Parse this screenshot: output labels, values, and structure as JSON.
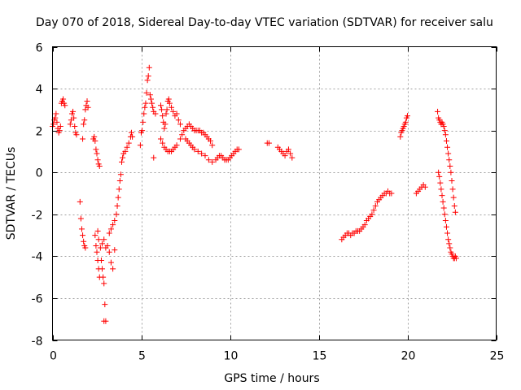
{
  "chart_data": {
    "type": "scatter",
    "title": "Day 070 of 2018, Sidereal Day-to-day VTEC variation (SDTVAR) for receiver salu",
    "xlabel": "GPS time / hours",
    "ylabel": "SDTVAR / TECUs",
    "xlim": [
      0,
      25
    ],
    "ylim": [
      -8,
      6
    ],
    "xticks": [
      0,
      5,
      10,
      15,
      20,
      25
    ],
    "yticks": [
      -8,
      -6,
      -4,
      -2,
      0,
      2,
      4,
      6
    ],
    "grid": true,
    "marker": "+",
    "marker_color": "#ff0000",
    "series": [
      {
        "name": "SDTVAR",
        "points": [
          [
            0.0,
            2.2
          ],
          [
            0.05,
            2.3
          ],
          [
            0.1,
            2.5
          ],
          [
            0.15,
            2.6
          ],
          [
            0.2,
            2.8
          ],
          [
            0.25,
            2.4
          ],
          [
            0.3,
            2.1
          ],
          [
            0.35,
            1.9
          ],
          [
            0.4,
            2.0
          ],
          [
            0.45,
            2.2
          ],
          [
            0.5,
            3.3
          ],
          [
            0.55,
            3.4
          ],
          [
            0.6,
            3.5
          ],
          [
            0.65,
            3.3
          ],
          [
            0.7,
            3.2
          ],
          [
            1.0,
            2.3
          ],
          [
            1.05,
            2.5
          ],
          [
            1.1,
            2.8
          ],
          [
            1.15,
            2.9
          ],
          [
            1.2,
            2.6
          ],
          [
            1.25,
            2.2
          ],
          [
            1.3,
            1.9
          ],
          [
            1.35,
            1.8
          ],
          [
            1.7,
            1.6
          ],
          [
            1.75,
            2.3
          ],
          [
            1.8,
            2.5
          ],
          [
            1.85,
            3.0
          ],
          [
            1.9,
            3.2
          ],
          [
            1.95,
            3.4
          ],
          [
            2.0,
            3.1
          ],
          [
            1.55,
            -1.4
          ],
          [
            1.6,
            -2.2
          ],
          [
            1.65,
            -2.7
          ],
          [
            1.7,
            -3.0
          ],
          [
            1.75,
            -3.3
          ],
          [
            1.8,
            -3.5
          ],
          [
            1.85,
            -3.6
          ],
          [
            2.3,
            1.6
          ],
          [
            2.35,
            1.7
          ],
          [
            2.4,
            1.5
          ],
          [
            2.45,
            1.1
          ],
          [
            2.5,
            0.9
          ],
          [
            2.55,
            0.6
          ],
          [
            2.6,
            0.4
          ],
          [
            2.65,
            0.3
          ],
          [
            2.45,
            -3.5
          ],
          [
            2.5,
            -3.8
          ],
          [
            2.55,
            -4.2
          ],
          [
            2.6,
            -4.6
          ],
          [
            2.65,
            -5.0
          ],
          [
            2.4,
            -3.0
          ],
          [
            2.55,
            -2.8
          ],
          [
            2.6,
            -3.2
          ],
          [
            2.7,
            -3.6
          ],
          [
            2.75,
            -4.2
          ],
          [
            2.8,
            -4.6
          ],
          [
            2.85,
            -5.0
          ],
          [
            2.9,
            -5.3
          ],
          [
            2.95,
            -6.3
          ],
          [
            2.9,
            -7.1
          ],
          [
            3.0,
            -7.1
          ],
          [
            2.8,
            -3.4
          ],
          [
            2.9,
            -3.2
          ],
          [
            3.0,
            -3.6
          ],
          [
            3.1,
            -3.5
          ],
          [
            3.2,
            -3.8
          ],
          [
            3.3,
            -4.3
          ],
          [
            3.4,
            -4.6
          ],
          [
            3.5,
            -3.7
          ],
          [
            3.2,
            -2.9
          ],
          [
            3.3,
            -2.7
          ],
          [
            3.4,
            -2.5
          ],
          [
            3.5,
            -2.3
          ],
          [
            3.6,
            -2.0
          ],
          [
            3.65,
            -1.6
          ],
          [
            3.7,
            -1.2
          ],
          [
            3.75,
            -0.8
          ],
          [
            3.8,
            -0.4
          ],
          [
            3.85,
            -0.1
          ],
          [
            3.9,
            0.5
          ],
          [
            3.95,
            0.7
          ],
          [
            4.0,
            0.9
          ],
          [
            4.1,
            1.0
          ],
          [
            4.2,
            1.2
          ],
          [
            4.3,
            1.4
          ],
          [
            4.4,
            1.7
          ],
          [
            4.45,
            1.9
          ],
          [
            4.5,
            1.7
          ],
          [
            4.95,
            1.3
          ],
          [
            5.0,
            1.9
          ],
          [
            5.05,
            2.0
          ],
          [
            5.1,
            2.4
          ],
          [
            5.15,
            2.8
          ],
          [
            5.2,
            3.1
          ],
          [
            5.25,
            3.3
          ],
          [
            5.3,
            3.8
          ],
          [
            5.35,
            4.4
          ],
          [
            5.4,
            4.6
          ],
          [
            5.45,
            5.0
          ],
          [
            5.5,
            3.7
          ],
          [
            5.55,
            3.5
          ],
          [
            5.6,
            3.3
          ],
          [
            5.65,
            3.1
          ],
          [
            5.7,
            2.9
          ],
          [
            5.8,
            2.8
          ],
          [
            5.7,
            0.7
          ],
          [
            6.1,
            3.2
          ],
          [
            6.15,
            3.0
          ],
          [
            6.2,
            2.7
          ],
          [
            6.25,
            2.4
          ],
          [
            6.3,
            2.1
          ],
          [
            6.35,
            2.3
          ],
          [
            6.4,
            2.8
          ],
          [
            6.45,
            3.0
          ],
          [
            6.5,
            3.4
          ],
          [
            6.55,
            3.5
          ],
          [
            6.6,
            3.3
          ],
          [
            6.7,
            3.1
          ],
          [
            6.8,
            2.9
          ],
          [
            6.9,
            2.7
          ],
          [
            7.0,
            2.8
          ],
          [
            7.1,
            2.5
          ],
          [
            7.2,
            2.3
          ],
          [
            6.1,
            1.6
          ],
          [
            6.2,
            1.4
          ],
          [
            6.3,
            1.2
          ],
          [
            6.4,
            1.1
          ],
          [
            6.5,
            1.0
          ],
          [
            6.6,
            1.0
          ],
          [
            6.7,
            1.0
          ],
          [
            6.8,
            1.1
          ],
          [
            6.9,
            1.2
          ],
          [
            7.0,
            1.3
          ],
          [
            7.2,
            1.6
          ],
          [
            7.3,
            1.8
          ],
          [
            7.4,
            2.0
          ],
          [
            7.5,
            2.1
          ],
          [
            7.6,
            2.2
          ],
          [
            7.7,
            2.3
          ],
          [
            7.8,
            2.2
          ],
          [
            7.9,
            2.1
          ],
          [
            8.0,
            2.0
          ],
          [
            8.1,
            2.0
          ],
          [
            8.2,
            2.0
          ],
          [
            8.3,
            2.0
          ],
          [
            8.4,
            1.9
          ],
          [
            8.5,
            1.9
          ],
          [
            8.6,
            1.8
          ],
          [
            8.7,
            1.7
          ],
          [
            8.8,
            1.6
          ],
          [
            8.9,
            1.5
          ],
          [
            9.0,
            1.3
          ],
          [
            7.5,
            1.6
          ],
          [
            7.6,
            1.5
          ],
          [
            7.7,
            1.4
          ],
          [
            7.8,
            1.3
          ],
          [
            7.9,
            1.2
          ],
          [
            8.0,
            1.1
          ],
          [
            8.2,
            1.0
          ],
          [
            8.4,
            0.9
          ],
          [
            8.6,
            0.8
          ],
          [
            8.8,
            0.6
          ],
          [
            9.0,
            0.5
          ],
          [
            9.2,
            0.6
          ],
          [
            9.3,
            0.7
          ],
          [
            9.4,
            0.8
          ],
          [
            9.5,
            0.8
          ],
          [
            9.6,
            0.7
          ],
          [
            9.7,
            0.6
          ],
          [
            9.8,
            0.6
          ],
          [
            9.9,
            0.6
          ],
          [
            10.0,
            0.7
          ],
          [
            10.1,
            0.8
          ],
          [
            10.2,
            0.9
          ],
          [
            10.3,
            1.0
          ],
          [
            10.4,
            1.1
          ],
          [
            10.5,
            1.1
          ],
          [
            12.1,
            1.4
          ],
          [
            12.2,
            1.4
          ],
          [
            12.7,
            1.2
          ],
          [
            12.8,
            1.1
          ],
          [
            12.9,
            1.0
          ],
          [
            13.0,
            0.9
          ],
          [
            13.1,
            0.8
          ],
          [
            13.2,
            1.0
          ],
          [
            13.3,
            1.1
          ],
          [
            13.4,
            0.9
          ],
          [
            13.5,
            0.7
          ],
          [
            16.3,
            -3.2
          ],
          [
            16.4,
            -3.1
          ],
          [
            16.5,
            -3.0
          ],
          [
            16.6,
            -2.9
          ],
          [
            16.7,
            -2.9
          ],
          [
            16.8,
            -3.0
          ],
          [
            16.9,
            -2.9
          ],
          [
            17.0,
            -2.9
          ],
          [
            17.1,
            -2.8
          ],
          [
            17.2,
            -2.8
          ],
          [
            17.3,
            -2.8
          ],
          [
            17.4,
            -2.7
          ],
          [
            17.5,
            -2.6
          ],
          [
            17.6,
            -2.5
          ],
          [
            17.7,
            -2.3
          ],
          [
            17.8,
            -2.2
          ],
          [
            17.9,
            -2.1
          ],
          [
            18.0,
            -2.0
          ],
          [
            18.1,
            -1.8
          ],
          [
            18.2,
            -1.6
          ],
          [
            18.3,
            -1.4
          ],
          [
            18.4,
            -1.3
          ],
          [
            18.5,
            -1.2
          ],
          [
            18.6,
            -1.1
          ],
          [
            18.7,
            -1.0
          ],
          [
            18.8,
            -1.0
          ],
          [
            18.9,
            -0.9
          ],
          [
            19.0,
            -1.0
          ],
          [
            19.1,
            -1.0
          ],
          [
            19.6,
            1.7
          ],
          [
            19.65,
            1.9
          ],
          [
            19.7,
            2.0
          ],
          [
            19.75,
            2.1
          ],
          [
            19.8,
            2.2
          ],
          [
            19.85,
            2.3
          ],
          [
            19.9,
            2.4
          ],
          [
            19.95,
            2.6
          ],
          [
            20.0,
            2.7
          ],
          [
            20.5,
            -1.0
          ],
          [
            20.6,
            -0.9
          ],
          [
            20.7,
            -0.8
          ],
          [
            20.8,
            -0.7
          ],
          [
            20.9,
            -0.6
          ],
          [
            21.0,
            -0.7
          ],
          [
            21.7,
            2.9
          ],
          [
            21.75,
            2.6
          ],
          [
            21.8,
            2.5
          ],
          [
            21.85,
            2.4
          ],
          [
            21.9,
            2.3
          ],
          [
            21.95,
            2.4
          ],
          [
            22.0,
            2.3
          ],
          [
            22.05,
            2.2
          ],
          [
            22.1,
            2.0
          ],
          [
            22.15,
            1.8
          ],
          [
            22.2,
            1.5
          ],
          [
            22.25,
            1.2
          ],
          [
            22.3,
            0.9
          ],
          [
            22.35,
            0.6
          ],
          [
            22.4,
            0.3
          ],
          [
            22.45,
            0.0
          ],
          [
            22.5,
            -0.4
          ],
          [
            22.55,
            -0.8
          ],
          [
            22.6,
            -1.2
          ],
          [
            22.65,
            -1.6
          ],
          [
            22.7,
            -1.9
          ],
          [
            21.75,
            0.0
          ],
          [
            21.8,
            -0.2
          ],
          [
            21.85,
            -0.5
          ],
          [
            21.9,
            -0.8
          ],
          [
            21.95,
            -1.1
          ],
          [
            22.0,
            -1.4
          ],
          [
            22.05,
            -1.7
          ],
          [
            22.1,
            -2.0
          ],
          [
            22.15,
            -2.3
          ],
          [
            22.2,
            -2.6
          ],
          [
            22.25,
            -2.9
          ],
          [
            22.3,
            -3.2
          ],
          [
            22.35,
            -3.4
          ],
          [
            22.4,
            -3.6
          ],
          [
            22.45,
            -3.8
          ],
          [
            22.5,
            -3.9
          ],
          [
            22.55,
            -4.0
          ],
          [
            22.6,
            -4.1
          ],
          [
            22.65,
            -4.1
          ],
          [
            22.7,
            -4.0
          ],
          [
            22.75,
            -4.1
          ]
        ]
      }
    ]
  }
}
